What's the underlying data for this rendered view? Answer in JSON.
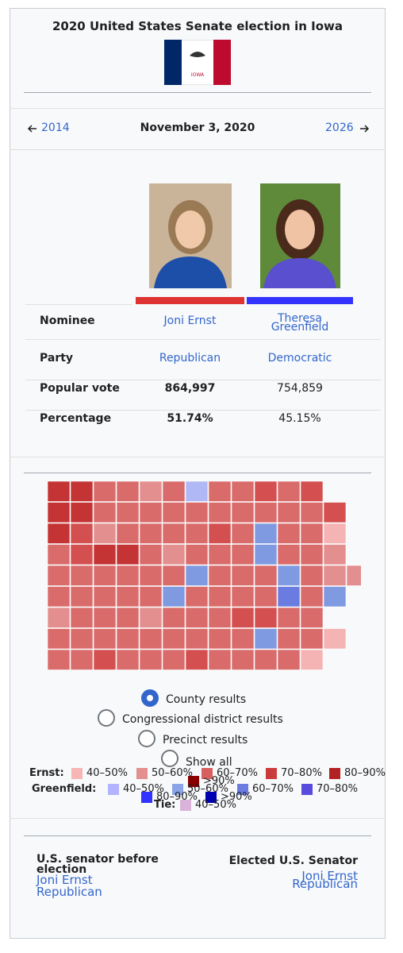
{
  "header": {
    "title": "2020 United States Senate election in Iowa",
    "flag_label": "IOWA"
  },
  "nav": {
    "prev": "2014",
    "date": "November 3, 2020",
    "next": "2026"
  },
  "candidates": {
    "columns": [
      {
        "name": "Joni Ernst",
        "color": "#dd3333"
      },
      {
        "name": "Theresa Greenfield",
        "color": "#3333ff"
      }
    ],
    "rows": [
      [
        "Nominee",
        "Joni Ernst",
        "Theresa Greenfield"
      ],
      [
        "Party",
        "Republican",
        "Democratic"
      ],
      [
        "Popular vote",
        "864,997",
        "754,859"
      ],
      [
        "Percentage",
        "51.74%",
        "45.15%"
      ]
    ]
  },
  "map": {
    "options": [
      "County results",
      "Congressional district results",
      "Precinct results",
      "Show all"
    ],
    "legend": [
      {
        "name": "Ernst:",
        "items": [
          {
            "label": "40–50%",
            "color": "#f6b6b6"
          },
          {
            "label": "50–60%",
            "color": "#e48f8f"
          },
          {
            "label": "60–70%",
            "color": "#d75f5f"
          },
          {
            "label": "70–80%",
            "color": "#cc3b3b"
          },
          {
            "label": "80–90%",
            "color": "#b22222"
          },
          {
            "label": ">90%",
            "color": "#880000"
          }
        ]
      },
      {
        "name": "Greenfield:",
        "items": [
          {
            "label": "40–50%",
            "color": "#b3b3ff"
          },
          {
            "label": "50–60%",
            "color": "#8ba4e8"
          },
          {
            "label": "60–70%",
            "color": "#6c7ce0"
          },
          {
            "label": "70–80%",
            "color": "#584cde"
          },
          {
            "label": "80–90%",
            "color": "#3333ff"
          },
          {
            "label": ">90%",
            "color": "#0000b3"
          }
        ]
      },
      {
        "name": "Tie:",
        "items": [
          {
            "label": "40–50%",
            "color": "#d9b3d9"
          }
        ]
      }
    ]
  },
  "footer": {
    "before": {
      "heading": "U.S. senator before election",
      "name": "Joni Ernst",
      "party": "Republican"
    },
    "after": {
      "heading": "Elected U.S. Senator",
      "name": "Joni Ernst",
      "party": "Republican"
    }
  }
}
